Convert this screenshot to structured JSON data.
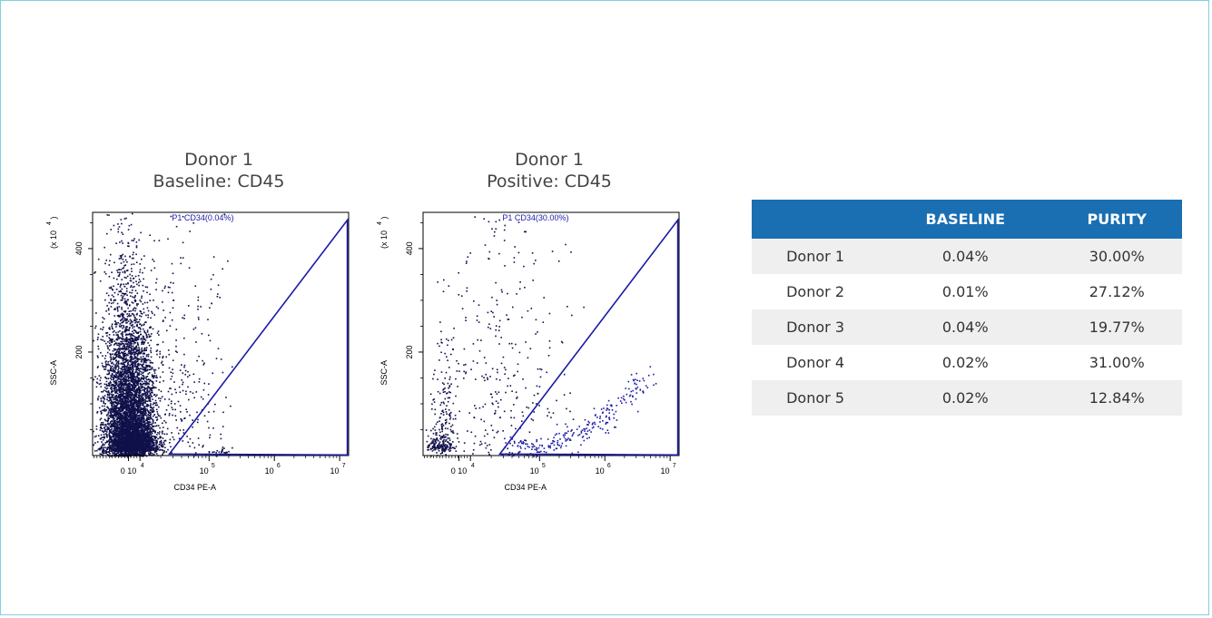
{
  "plots": [
    {
      "title_line1": "Donor 1",
      "title_line2": "Baseline: CD45",
      "gate_label": "P1 CD34(0.04%)",
      "xlabel": "CD34 PE-A",
      "ylabel": "SSC-A",
      "y_unit_label": "(x 10",
      "y_unit_exp": "4",
      "y_unit_close": ")",
      "yticks": [
        "400",
        "200"
      ],
      "xticks": [
        {
          "base": "0 10",
          "exp": "4"
        },
        {
          "base": "10",
          "exp": "5"
        },
        {
          "base": "10",
          "exp": "6"
        },
        {
          "base": "10",
          "exp": "7"
        }
      ]
    },
    {
      "title_line1": "Donor 1",
      "title_line2": "Positive: CD45",
      "gate_label": "P1 CD34(30.00%)",
      "xlabel": "CD34 PE-A",
      "ylabel": "SSC-A",
      "y_unit_label": "(x 10",
      "y_unit_exp": "4",
      "y_unit_close": ")",
      "yticks": [
        "400",
        "200"
      ],
      "xticks": [
        {
          "base": "0 10",
          "exp": "4"
        },
        {
          "base": "10",
          "exp": "5"
        },
        {
          "base": "10",
          "exp": "6"
        },
        {
          "base": "10",
          "exp": "7"
        }
      ]
    }
  ],
  "table": {
    "headers": [
      "",
      "BASELINE",
      "PURITY"
    ],
    "rows": [
      [
        "Donor 1",
        "0.04%",
        "30.00%"
      ],
      [
        "Donor 2",
        "0.01%",
        "27.12%"
      ],
      [
        "Donor 3",
        "0.04%",
        "19.77%"
      ],
      [
        "Donor 4",
        "0.02%",
        "31.00%"
      ],
      [
        "Donor 5",
        "0.02%",
        "12.84%"
      ]
    ]
  },
  "chart_data": [
    {
      "type": "scatter",
      "title": "Donor 1 Baseline: CD45",
      "xlabel": "CD34 PE-A",
      "ylabel": "SSC-A",
      "yscale_label": "x 10^4",
      "xscale": "biexponential",
      "xticks": [
        "0",
        "10^4",
        "10^5",
        "10^6",
        "10^7"
      ],
      "yticks": [
        200,
        400
      ],
      "ylim": [
        0,
        470
      ],
      "gate": {
        "name": "P1 CD34",
        "percent": 0.04
      },
      "point_color": "#10104a",
      "gate_color": "#1a1aa8"
    },
    {
      "type": "scatter",
      "title": "Donor 1 Positive: CD45",
      "xlabel": "CD34 PE-A",
      "ylabel": "SSC-A",
      "yscale_label": "x 10^4",
      "xscale": "biexponential",
      "xticks": [
        "0",
        "10^4",
        "10^5",
        "10^6",
        "10^7"
      ],
      "yticks": [
        200,
        400
      ],
      "ylim": [
        0,
        470
      ],
      "gate": {
        "name": "P1 CD34",
        "percent": 30.0
      },
      "point_color": "#10104a",
      "gate_color": "#1a1aa8"
    }
  ]
}
